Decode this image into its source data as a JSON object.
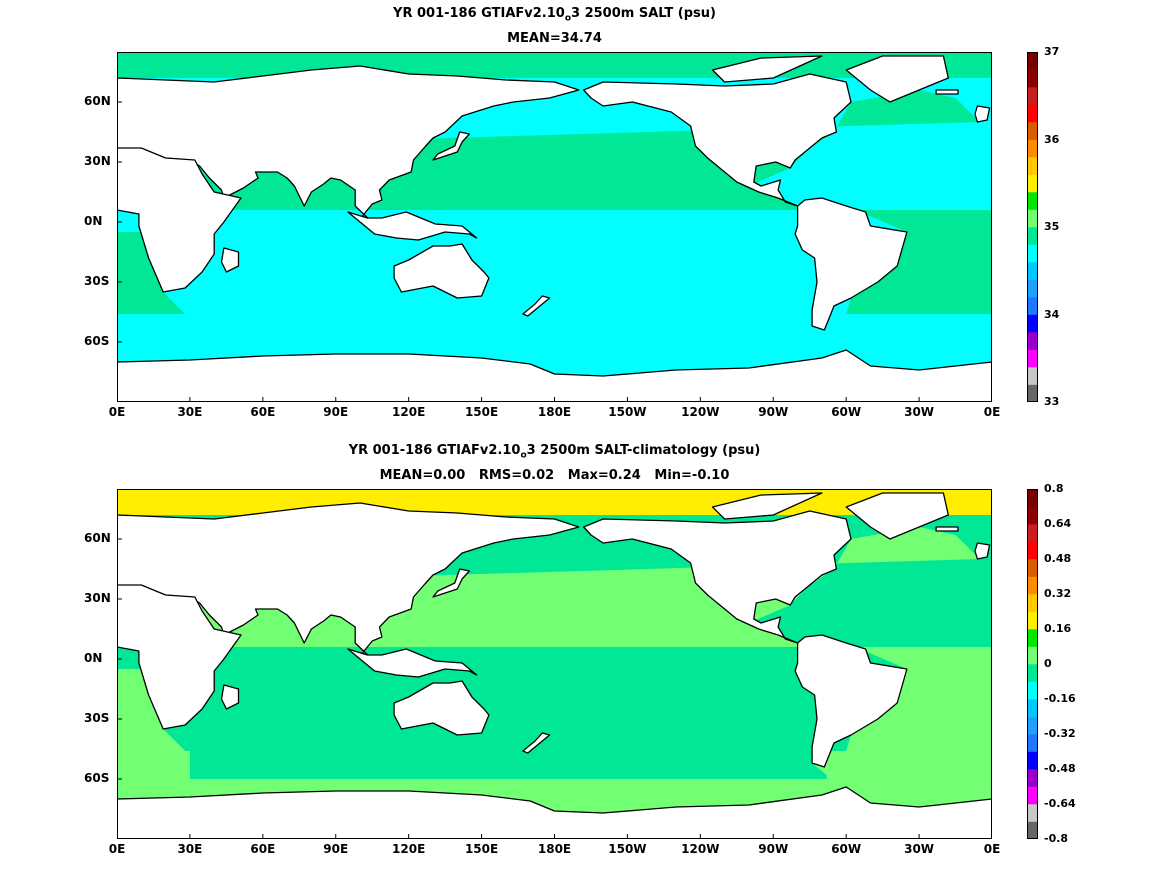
{
  "colors": {
    "land": "#ffffff",
    "coast": "#000000",
    "abs_palette": [
      "#666666",
      "#c8c8c8",
      "#ff00ff",
      "#9a00cc",
      "#0000ff",
      "#1e78ff",
      "#1ea0ff",
      "#00c8ff",
      "#00ffff",
      "#00e896",
      "#73ff73",
      "#00e800",
      "#ffee00",
      "#ffc800",
      "#ff8c00",
      "#dc5a00",
      "#ff0000",
      "#c81e1e",
      "#8c0000",
      "#780000"
    ],
    "anom_palette": [
      "#666666",
      "#c8c8c8",
      "#ff00ff",
      "#9a00cc",
      "#0000ff",
      "#1e78ff",
      "#1ea0ff",
      "#00c8ff",
      "#00ffff",
      "#00e896",
      "#73ff73",
      "#00e800",
      "#ffee00",
      "#ffc800",
      "#ff8c00",
      "#dc5a00",
      "#ff0000",
      "#c81e1e",
      "#8c0000",
      "#780000"
    ]
  },
  "chart_data": [
    {
      "type": "heatmap",
      "title_pre": "YR 001-186 GTIAFv2.10",
      "title_sub": "o",
      "title_post": "3 2500m SALT (psu)",
      "subtitle": "MEAN=34.74",
      "x_ticks": [
        "0E",
        "30E",
        "60E",
        "90E",
        "120E",
        "150E",
        "180E",
        "150W",
        "120W",
        "90W",
        "60W",
        "30W",
        "0E"
      ],
      "y_ticks": [
        "60N",
        "30N",
        "0N",
        "30S",
        "60S"
      ],
      "colorbar": {
        "min": 33,
        "max": 37,
        "labels": [
          "37",
          "36",
          "35",
          "34",
          "33"
        ]
      },
      "regions": {
        "pacific": 34.65,
        "indian": 34.7,
        "southern": 34.72,
        "atlantic_north": 34.93,
        "atlantic_south": 34.88,
        "arctic": 34.92
      }
    },
    {
      "type": "heatmap",
      "title_pre": "YR 001-186 GTIAFv2.10",
      "title_sub": "o",
      "title_post": "3 2500m SALT-climatology (psu)",
      "subtitle": "MEAN=0.00   RMS=0.02   Max=0.24   Min=-0.10",
      "x_ticks": [
        "0E",
        "30E",
        "60E",
        "90E",
        "120E",
        "150E",
        "180E",
        "150W",
        "120W",
        "90W",
        "60W",
        "30W",
        "0E"
      ],
      "y_ticks": [
        "60N",
        "30N",
        "0N",
        "30S",
        "60S"
      ],
      "colorbar": {
        "min": -0.8,
        "max": 0.8,
        "labels": [
          "0.8",
          "0.64",
          "0.48",
          "0.32",
          "0.16",
          "0",
          "-0.16",
          "-0.32",
          "-0.48",
          "-0.64",
          "-0.8"
        ]
      },
      "regions": {
        "pacific": -0.02,
        "indian": -0.03,
        "southern": 0.02,
        "atlantic_north": 0.04,
        "atlantic_south": 0.05,
        "arctic": 0.2
      }
    }
  ]
}
